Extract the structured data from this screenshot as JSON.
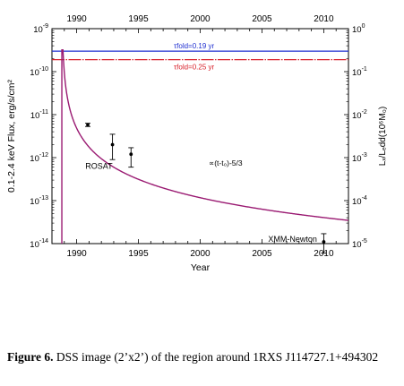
{
  "chart_data": {
    "type": "line",
    "xlabel": "Year",
    "ylabel_left": "0.1-2.4 keV Flux, erg/s/cm²",
    "ylabel_right": "Lₓ/Lₑdd(10⁶M₀)",
    "xlim": [
      1988,
      2012
    ],
    "ylim_left": [
      1e-14,
      1e-09
    ],
    "ylim_right": [
      1e-05,
      1
    ],
    "y_scale": "log",
    "bottom_x_ticks": [
      "1990",
      "1995",
      "2000",
      "2005",
      "2010"
    ],
    "top_x_ticks": [
      "1990",
      "1995",
      "2000",
      "2005",
      "2010"
    ],
    "left_y_ticks": [
      {
        "base": "10",
        "exp": "-9",
        "value": 1e-09
      },
      {
        "base": "10",
        "exp": "-10",
        "value": 1e-10
      },
      {
        "base": "10",
        "exp": "-11",
        "value": 1e-11
      },
      {
        "base": "10",
        "exp": "-12",
        "value": 1e-12
      },
      {
        "base": "10",
        "exp": "-13",
        "value": 1e-13
      },
      {
        "base": "10",
        "exp": "-14",
        "value": 1e-14
      }
    ],
    "right_y_ticks": [
      {
        "base": "10",
        "exp": "0",
        "value": 1
      },
      {
        "base": "10",
        "exp": "-1",
        "value": 0.1
      },
      {
        "base": "10",
        "exp": "-2",
        "value": 0.01
      },
      {
        "base": "10",
        "exp": "-3",
        "value": 0.001
      },
      {
        "base": "10",
        "exp": "-4",
        "value": 0.0001
      },
      {
        "base": "10",
        "exp": "-5",
        "value": 1e-05
      }
    ],
    "hlines": [
      {
        "label": "τfold=0.19 yr",
        "y": 3e-10,
        "color": "#1f2fd0",
        "style": "solid"
      },
      {
        "label": "τfold=0.25 yr",
        "y": 1.9e-10,
        "color": "#d8202a",
        "style": "dash-dot"
      }
    ],
    "decay_curve": {
      "label": "∝(t-t₀)-5/3",
      "color": "#9a1a72",
      "t0": 1988.8,
      "peak": 3.2e-10,
      "amplitude": 6.55e-12,
      "power": 1.6667,
      "x": [
        1988.8,
        1989.0,
        1989.1,
        1989.2,
        1989.4,
        1989.6,
        1990.0,
        1990.5,
        1991.0,
        1992.0,
        1993.0,
        1994.5,
        1996.0,
        1998.0,
        2000.0,
        2002.0,
        2004.0,
        2006.0,
        2008.0,
        2010.0,
        2012.0
      ],
      "y": [
        3.2e-10,
        1e-10,
        6.6e-11,
        4e-11,
        2.2e-11,
        1.2e-11,
        4.1e-12,
        2.6e-12,
        1.8e-12,
        1.1e-12,
        9e-13,
        6.2e-13,
        4.2e-13,
        2.9e-13,
        2.3e-13,
        1.9e-13,
        1.6e-13,
        1.4e-13,
        1.25e-13,
        1.1e-13,
        1e-13
      ]
    },
    "points": [
      {
        "x": 1990.9,
        "y": 5.8e-12,
        "lo": 5.3e-12,
        "hi": 6.3e-12
      },
      {
        "x": 1992.9,
        "y": 2e-12,
        "lo": 9e-13,
        "hi": 3.5e-12
      },
      {
        "x": 1994.4,
        "y": 1.2e-12,
        "lo": 6e-13,
        "hi": 1.7e-12
      },
      {
        "x": 2010.0,
        "y": 1.1e-14,
        "lo": 6e-15,
        "hi": 1.7e-14
      }
    ],
    "annotations": [
      {
        "text": "ROSAT",
        "x": 1990.7,
        "y": 5.5e-13
      },
      {
        "text": "XMM-Newton",
        "x": 2005.5,
        "y": 1.1e-14
      }
    ]
  },
  "caption": {
    "label": "Figure 6.",
    "text": "DSS image (2’x2’) of the region around 1RXS J114727.1+494302"
  }
}
